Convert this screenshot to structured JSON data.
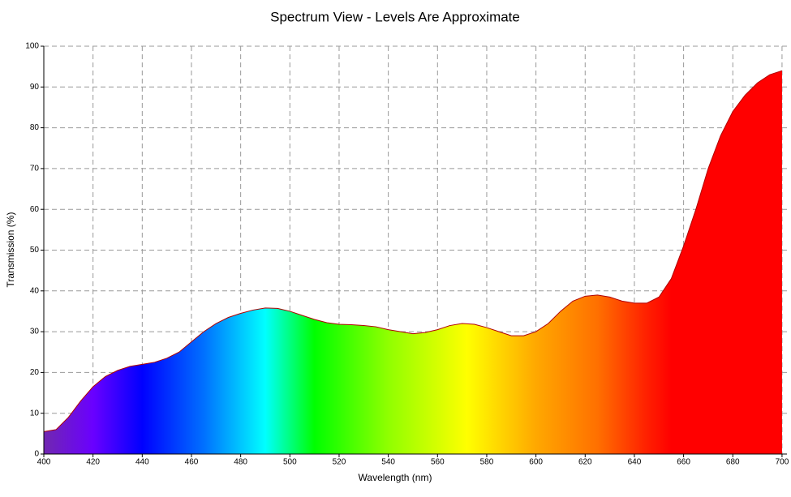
{
  "chart_data": {
    "type": "area",
    "title": "Spectrum View - Levels Are Approximate",
    "x_label": "Wavelength (nm)",
    "y_label": "Transmission (%)",
    "x": [
      400,
      405,
      410,
      415,
      420,
      425,
      430,
      435,
      440,
      445,
      450,
      455,
      460,
      465,
      470,
      475,
      480,
      485,
      490,
      495,
      500,
      505,
      510,
      515,
      520,
      525,
      530,
      535,
      540,
      545,
      550,
      555,
      560,
      565,
      570,
      575,
      580,
      585,
      590,
      595,
      600,
      605,
      610,
      615,
      620,
      625,
      630,
      635,
      640,
      645,
      650,
      655,
      660,
      665,
      670,
      675,
      680,
      685,
      690,
      695,
      700
    ],
    "values": [
      5.5,
      6,
      9,
      13,
      16.5,
      19,
      20.5,
      21.5,
      22,
      22.5,
      23.5,
      25,
      27.5,
      30,
      32,
      33.5,
      34.5,
      35.3,
      35.8,
      35.7,
      35,
      34,
      33,
      32.2,
      31.8,
      31.7,
      31.5,
      31.2,
      30.5,
      30,
      29.5,
      29.8,
      30.5,
      31.5,
      32,
      31.8,
      31,
      30,
      29,
      29,
      30,
      32,
      35,
      37.5,
      38.7,
      39,
      38.5,
      37.5,
      37,
      37,
      38.5,
      43,
      51,
      60,
      70,
      78,
      84,
      88,
      91,
      93,
      94
    ],
    "fill_gradient": [
      {
        "x": 400,
        "color": "#7028b0"
      },
      {
        "x": 420,
        "color": "#6a00ff"
      },
      {
        "x": 440,
        "color": "#0000ff"
      },
      {
        "x": 465,
        "color": "#0070ff"
      },
      {
        "x": 490,
        "color": "#00ffff"
      },
      {
        "x": 510,
        "color": "#00ff00"
      },
      {
        "x": 540,
        "color": "#90ff00"
      },
      {
        "x": 572,
        "color": "#ffff00"
      },
      {
        "x": 600,
        "color": "#ffa800"
      },
      {
        "x": 625,
        "color": "#ff7000"
      },
      {
        "x": 645,
        "color": "#ff2000"
      },
      {
        "x": 655,
        "color": "#ff0000"
      },
      {
        "x": 700,
        "color": "#ff0000"
      }
    ],
    "line_color": "#b00000",
    "xlim": [
      400,
      702
    ],
    "ylim": [
      0,
      100
    ],
    "xticks": [
      400,
      420,
      440,
      460,
      480,
      500,
      520,
      540,
      560,
      580,
      600,
      620,
      640,
      660,
      680,
      700
    ],
    "yticks": [
      0,
      10,
      20,
      30,
      40,
      50,
      60,
      70,
      80,
      90,
      100
    ],
    "grid": true
  }
}
